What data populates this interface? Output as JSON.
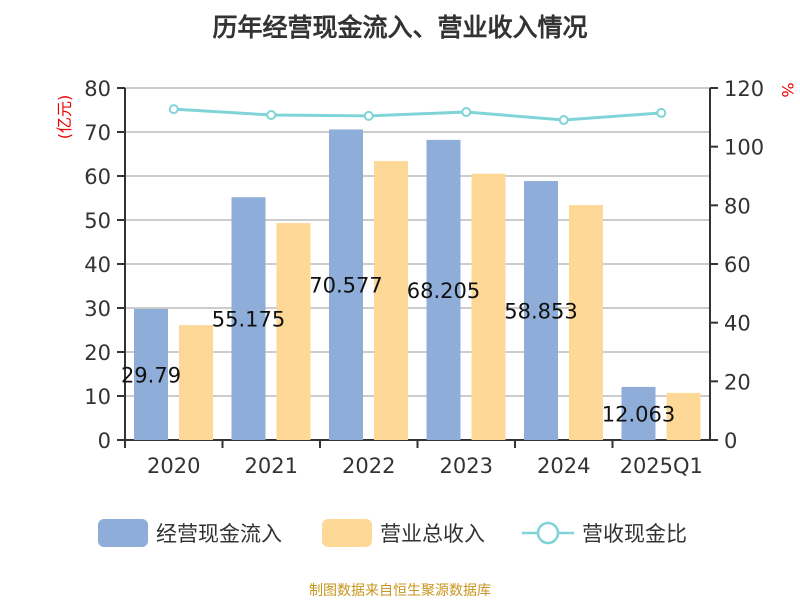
{
  "chart_data": {
    "type": "bar",
    "title": "历年经营现金流入、营业收入情况",
    "categories": [
      "2020",
      "2021",
      "2022",
      "2023",
      "2024",
      "2025Q1"
    ],
    "series": [
      {
        "name": "经营现金流入",
        "type": "bar",
        "axis": "left",
        "color": "#8eadd9",
        "values": [
          29.79,
          55.175,
          70.577,
          68.205,
          58.853,
          12.063
        ],
        "labels": [
          "29.79",
          "55.175",
          "70.577",
          "68.205",
          "58.853",
          "12.063"
        ]
      },
      {
        "name": "营业总收入",
        "type": "bar",
        "axis": "left",
        "color": "#fed897",
        "values": [
          26.1,
          49.3,
          63.4,
          60.5,
          53.4,
          10.7
        ]
      },
      {
        "name": "营收现金比",
        "type": "line",
        "axis": "right",
        "color": "#80d4d8",
        "values": [
          112.8,
          110.8,
          110.5,
          111.8,
          109.1,
          111.5
        ]
      }
    ],
    "ylabel": "(亿元)",
    "ylim": [
      0,
      80
    ],
    "yticks": [
      0,
      10,
      20,
      30,
      40,
      50,
      60,
      70,
      80
    ],
    "y2label": "%",
    "y2lim": [
      0,
      120
    ],
    "y2ticks": [
      0,
      20,
      40,
      60,
      80,
      100,
      120
    ],
    "grid": true,
    "legend": "bottom"
  },
  "footer": "制图数据来自恒生聚源数据库"
}
